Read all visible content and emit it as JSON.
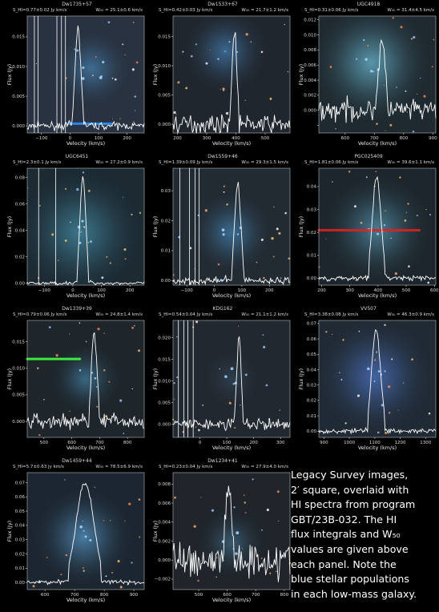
{
  "figure": {
    "ylabel": "Flux (Jy)",
    "xlabel": "Velocity (km/s)",
    "caption_lines": [
      "Legacy Survey images,",
      "2′ square, overlaid with",
      "HI spectra from program",
      "GBT/23B-032.  The HI",
      "flux integrals and W₅₀",
      "values are given above",
      "each panel.  Note the",
      "blue stellar populations",
      "in each low-mass galaxy."
    ]
  },
  "chart_data": [
    {
      "type": "line",
      "title": "Dw1735+57",
      "flux": "S_HI=0.77±0.02 Jy km/s",
      "w50": "W₅₀ = 25.1±0.6 km/s",
      "xlim": [
        -150,
        260
      ],
      "ylim": [
        -0.0012,
        0.0185
      ],
      "xticks": [
        -100,
        0,
        100,
        200
      ],
      "xtick_labels": [
        "−100",
        "0",
        "100",
        "200"
      ],
      "yticks": [
        0.0,
        0.005,
        0.01,
        0.015
      ],
      "ytick_labels": [
        "0.000",
        "0.005",
        "0.010",
        "0.015"
      ],
      "peak_v": 28,
      "peak_flux": 0.0165,
      "width": 26,
      "noise": 0.0006,
      "edge_lines": [
        -125,
        -112,
        -46,
        -30,
        -16
      ],
      "img": {
        "bg": "#283240",
        "glow": "#3f6e95",
        "gx": 0.55,
        "gy": 0.45,
        "gr": 0.16,
        "streak": [
          0.35,
          0.92,
          0.72,
          "#2a8fff"
        ]
      }
    },
    {
      "type": "line",
      "title": "Dw1533+67",
      "flux": "S_HI=0.42±0.03 Jy km/s",
      "w50": "W₅₀ = 21.7±1.2 km/s",
      "xlim": [
        185,
        585
      ],
      "ylim": [
        -0.0015,
        0.0185
      ],
      "xticks": [
        200,
        300,
        400,
        500
      ],
      "xtick_labels": [
        "200",
        "300",
        "400",
        "500"
      ],
      "yticks": [
        0.0,
        0.005,
        0.01,
        0.015
      ],
      "ytick_labels": [
        "0.000",
        "0.005",
        "0.010",
        "0.015"
      ],
      "peak_v": 395,
      "peak_flux": 0.0155,
      "width": 22,
      "noise": 0.0014,
      "edge_lines": [],
      "img": {
        "bg": "#20262e",
        "glow": "#3d6a93",
        "gx": 0.45,
        "gy": 0.3,
        "gr": 0.17,
        "streak": null
      }
    },
    {
      "type": "line",
      "title": "UGC4918",
      "flux": "S_HI=0.31±0.06 Jy km/s",
      "w50": "W₅₀ = 31.4±4.5 km/s",
      "xlim": [
        510,
        910
      ],
      "ylim": [
        -0.003,
        0.0125
      ],
      "xticks": [
        600,
        700,
        800,
        900
      ],
      "xtick_labels": [
        "600",
        "700",
        "800",
        "900"
      ],
      "yticks": [
        -0.002,
        0.0,
        0.002,
        0.004,
        0.006,
        0.008,
        0.01,
        0.012
      ],
      "ytick_labels": [
        "",
        "0.000",
        "0.002",
        "0.004",
        "0.006",
        "0.008",
        "0.010",
        "0.012"
      ],
      "peak_v": 725,
      "peak_flux": 0.009,
      "width": 30,
      "noise": 0.0014,
      "edge_lines": [],
      "img": {
        "bg": "#1f2a30",
        "glow": "#5b9ab0",
        "gx": 0.45,
        "gy": 0.4,
        "gr": 0.24,
        "streak": null
      }
    },
    {
      "type": "line",
      "title": "UGC6451",
      "flux": "S_HI=2.3±0.1 Jy km/s",
      "w50": "W₅₀ = 27.2±0.9 km/s",
      "xlim": [
        -160,
        250
      ],
      "ylim": [
        -0.0015,
        0.087
      ],
      "xticks": [
        -100,
        0,
        100,
        200
      ],
      "xtick_labels": [
        "−100",
        "0",
        "100",
        "200"
      ],
      "yticks": [
        0.0,
        0.02,
        0.04,
        0.06,
        0.08
      ],
      "ytick_labels": [
        "0.00",
        "0.02",
        "0.04",
        "0.06",
        "0.08"
      ],
      "peak_v": 35,
      "peak_flux": 0.08,
      "width": 27,
      "noise": 0.0012,
      "edge_lines": [
        -120,
        -60
      ],
      "img": {
        "bg": "#1c2a32",
        "glow": "#3e7990",
        "gx": 0.45,
        "gy": 0.55,
        "gr": 0.26,
        "streak": null
      }
    },
    {
      "type": "line",
      "title": "Dw1559+46",
      "flux": "S_HI=1.39±0.09 Jy km/s",
      "w50": "W₅₀ = 29.3±1.5 km/s",
      "xlim": [
        -150,
        275
      ],
      "ylim": [
        -0.0015,
        0.0375
      ],
      "xticks": [
        -100,
        0,
        100,
        200
      ],
      "xtick_labels": [
        "−100",
        "0",
        "100",
        "200"
      ],
      "yticks": [
        0.0,
        0.01,
        0.02,
        0.03
      ],
      "ytick_labels": [
        "0.00",
        "0.01",
        "0.02",
        "0.03"
      ],
      "peak_v": 85,
      "peak_flux": 0.032,
      "width": 30,
      "noise": 0.0012,
      "edge_lines": [
        -125,
        -90,
        -70,
        -55
      ],
      "img": {
        "bg": "#222a32",
        "glow": "#3d6f94",
        "gx": 0.5,
        "gy": 0.55,
        "gr": 0.17,
        "streak": null
      }
    },
    {
      "type": "line",
      "title": "PGC025409",
      "flux": "S_HI=1.81±0.06 Jy km/s",
      "w50": "W₅₀ = 39.6±1.1 km/s",
      "xlim": [
        190,
        605
      ],
      "ylim": [
        -0.003,
        0.048
      ],
      "xticks": [
        200,
        300,
        400,
        500,
        600
      ],
      "xtick_labels": [
        "200",
        "300",
        "400",
        "500",
        "600"
      ],
      "yticks": [
        0.0,
        0.01,
        0.02,
        0.03,
        0.04
      ],
      "ytick_labels": [
        "0.00",
        "0.01",
        "0.02",
        "0.03",
        "0.04"
      ],
      "peak_v": 395,
      "peak_flux": 0.044,
      "width": 40,
      "noise": 0.0012,
      "edge_lines": [],
      "img": {
        "bg": "#1d262c",
        "glow": "#4b7f96",
        "gx": 0.5,
        "gy": 0.52,
        "gr": 0.22,
        "streak": [
          0.0,
          0.53,
          0.86,
          "#e02020"
        ]
      }
    },
    {
      "type": "line",
      "title": "Dw1339+39",
      "flux": "S_HI=0.79±0.06 Jy km/s",
      "w50": "W₅₀ = 24.8±1.4 km/s",
      "xlim": [
        440,
        860
      ],
      "ylim": [
        -0.003,
        0.019
      ],
      "xticks": [
        500,
        600,
        700,
        800
      ],
      "xtick_labels": [
        "500",
        "600",
        "700",
        "800"
      ],
      "yticks": [
        -0.005,
        0.0,
        0.005,
        0.01,
        0.015
      ],
      "ytick_labels": [
        "",
        "0.000",
        "0.005",
        "0.010",
        "0.015"
      ],
      "peak_v": 680,
      "peak_flux": 0.0175,
      "width": 25,
      "noise": 0.0015,
      "edge_lines": [],
      "img": {
        "bg": "#1e262c",
        "glow": "#3b6a86",
        "gx": 0.5,
        "gy": 0.5,
        "gr": 0.14,
        "streak": [
          0.0,
          0.33,
          0.45,
          "#40ff40"
        ]
      }
    },
    {
      "type": "line",
      "title": "KDG162",
      "flux": "S_HI=0.54±0.04 Jy km/s",
      "w50": "W₅₀ = 21.1±1.2 km/s",
      "xlim": [
        -100,
        335
      ],
      "ylim": [
        -0.003,
        0.024
      ],
      "xticks": [
        0,
        100,
        200,
        300
      ],
      "xtick_labels": [
        "0",
        "100",
        "200",
        "300"
      ],
      "yticks": [
        0.0,
        0.005,
        0.01,
        0.015,
        0.02
      ],
      "ytick_labels": [
        "0.000",
        "0.005",
        "0.010",
        "0.015",
        "0.020"
      ],
      "peak_v": 145,
      "peak_flux": 0.0205,
      "width": 21,
      "noise": 0.0014,
      "edge_lines": [
        -80,
        -60,
        -45,
        -25
      ],
      "img": {
        "bg": "#222830",
        "glow": "#2e3e4d",
        "gx": 0.5,
        "gy": 0.5,
        "gr": 0.12,
        "streak": null
      }
    },
    {
      "type": "line",
      "title": "VV507",
      "flux": "S_HI=3.38±0.08 Jy km/s",
      "w50": "W₅₀ = 46.3±0.9 km/s",
      "xlim": [
        880,
        1340
      ],
      "ylim": [
        -0.004,
        0.072
      ],
      "xticks": [
        900,
        1000,
        1100,
        1200,
        1300
      ],
      "xtick_labels": [
        "900",
        "1000",
        "1100",
        "1200",
        "1300"
      ],
      "yticks": [
        0.0,
        0.01,
        0.02,
        0.03,
        0.04,
        0.05,
        0.06,
        0.07
      ],
      "ytick_labels": [
        "0.00",
        "0.01",
        "0.02",
        "0.03",
        "0.04",
        "0.05",
        "0.06",
        "0.07"
      ],
      "peak_v": 1105,
      "peak_flux": 0.066,
      "width": 46,
      "noise": 0.0015,
      "edge_lines": [],
      "img": {
        "bg": "#202a34",
        "glow": "#4466a6",
        "gx": 0.48,
        "gy": 0.48,
        "gr": 0.24,
        "streak": null
      }
    },
    {
      "type": "line",
      "title": "Dw1459+44",
      "flux": "S_HI=5.7±0.63 Jy km/s",
      "w50": "W₅₀ = 78.5±6.9 km/s",
      "xlim": [
        540,
        935
      ],
      "ylim": [
        -0.005,
        0.077
      ],
      "xticks": [
        600,
        700,
        800,
        900
      ],
      "xtick_labels": [
        "600",
        "700",
        "800",
        "900"
      ],
      "yticks": [
        0.0,
        0.01,
        0.02,
        0.03,
        0.04,
        0.05,
        0.06,
        0.07
      ],
      "ytick_labels": [
        "0.00",
        "0.01",
        "0.02",
        "0.03",
        "0.04",
        "0.05",
        "0.06",
        "0.07"
      ],
      "peak_v": 735,
      "peak_flux": 0.07,
      "width": 78,
      "noise": 0.0015,
      "edge_lines": [],
      "img": {
        "bg": "#1c2630",
        "glow": "#4b7fa6",
        "gx": 0.48,
        "gy": 0.55,
        "gr": 0.2,
        "streak": null
      }
    },
    {
      "type": "line",
      "title": "Dw1234+41",
      "flux": "S_HI=0.23±0.04 Jy km/s",
      "w50": "W₅₀ = 27.9±4.0 km/s",
      "xlim": [
        410,
        820
      ],
      "ylim": [
        -0.0031,
        0.0092
      ],
      "xticks": [
        500,
        600,
        700,
        800
      ],
      "xtick_labels": [
        "500",
        "600",
        "700",
        "800"
      ],
      "yticks": [
        -0.002,
        0.0,
        0.002,
        0.004,
        0.006,
        0.008
      ],
      "ytick_labels": [
        "−0.002",
        "0.000",
        "0.002",
        "0.004",
        "0.006",
        "0.008"
      ],
      "peak_v": 605,
      "peak_flux": 0.0075,
      "width": 28,
      "noise": 0.0019,
      "edge_lines": [],
      "img": {
        "bg": "#1f252b",
        "glow": "#3a5a70",
        "gx": 0.5,
        "gy": 0.6,
        "gr": 0.14,
        "streak": null
      }
    }
  ]
}
